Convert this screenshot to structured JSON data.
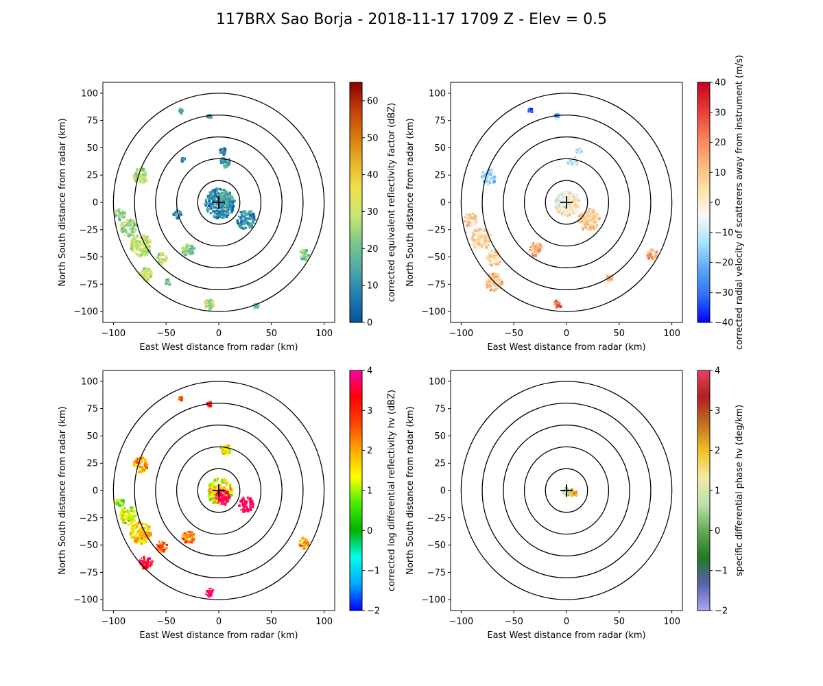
{
  "figure_title": "117BRX Sao Borja - 2018-11-17 1709 Z -  Elev = 0.5",
  "chart_data": [
    {
      "type": "heatmap",
      "panel": "reflectivity",
      "xlabel": "East West distance from radar (km)",
      "ylabel": "North South distance from radar (km)",
      "xlim": [
        -110,
        110
      ],
      "ylim": [
        -110,
        110
      ],
      "x_ticks": [
        -100,
        -50,
        0,
        50,
        100
      ],
      "y_ticks": [
        -100,
        -75,
        -50,
        -25,
        0,
        25,
        50,
        75,
        100
      ],
      "range_rings_km": [
        20,
        40,
        60,
        80,
        100
      ],
      "colorbar": {
        "label": "corrected equivalent reflectivity factor (dBZ)",
        "min": 0,
        "max": 65,
        "ticks": [
          0,
          10,
          20,
          30,
          40,
          50,
          60
        ],
        "colors": [
          "#08519c",
          "#1f7fb4",
          "#4fa8a8",
          "#7ac98a",
          "#c6e870",
          "#f2e050",
          "#e8b428",
          "#d8780e",
          "#c43c06",
          "#8b0000"
        ]
      },
      "echoes": [
        {
          "x": 0,
          "y": 0,
          "r": 14,
          "value": 8
        },
        {
          "x": 5,
          "y": 3,
          "r": 8,
          "value": 14
        },
        {
          "x": 25,
          "y": -15,
          "r": 9,
          "value": 10
        },
        {
          "x": 5,
          "y": 38,
          "r": 5,
          "value": 12
        },
        {
          "x": 3,
          "y": 48,
          "r": 3,
          "value": 10
        },
        {
          "x": -75,
          "y": 25,
          "r": 7,
          "value": 28
        },
        {
          "x": -95,
          "y": -10,
          "r": 5,
          "value": 22
        },
        {
          "x": -87,
          "y": -22,
          "r": 8,
          "value": 24
        },
        {
          "x": -75,
          "y": -38,
          "r": 10,
          "value": 30
        },
        {
          "x": -55,
          "y": -50,
          "r": 5,
          "value": 28
        },
        {
          "x": -70,
          "y": -65,
          "r": 6,
          "value": 30
        },
        {
          "x": -50,
          "y": -72,
          "r": 3,
          "value": 20
        },
        {
          "x": -30,
          "y": -42,
          "r": 6,
          "value": 22
        },
        {
          "x": -10,
          "y": -92,
          "r": 5,
          "value": 26
        },
        {
          "x": 35,
          "y": -95,
          "r": 3,
          "value": 18
        },
        {
          "x": 80,
          "y": -47,
          "r": 5,
          "value": 22
        },
        {
          "x": -40,
          "y": -10,
          "r": 4,
          "value": 10
        },
        {
          "x": -35,
          "y": 40,
          "r": 2,
          "value": 12
        },
        {
          "x": -10,
          "y": 80,
          "r": 2,
          "value": 14
        },
        {
          "x": -37,
          "y": 85,
          "r": 2,
          "value": 16
        }
      ]
    },
    {
      "type": "heatmap",
      "panel": "velocity",
      "xlabel": "East West distance from radar (km)",
      "ylabel": "North South distance from radar (km)",
      "xlim": [
        -110,
        110
      ],
      "ylim": [
        -110,
        110
      ],
      "x_ticks": [
        -100,
        -50,
        0,
        50,
        100
      ],
      "y_ticks": [
        -100,
        -75,
        -50,
        -25,
        0,
        25,
        50,
        75,
        100
      ],
      "range_rings_km": [
        20,
        40,
        60,
        80,
        100
      ],
      "colorbar": {
        "label": "corrected radial velocity of scatterers away from instrument (m/s)",
        "min": -40,
        "max": 40,
        "ticks": [
          -40,
          -30,
          -20,
          -10,
          0,
          10,
          20,
          30,
          40
        ],
        "colors": [
          "#0000ff",
          "#2f6ff2",
          "#5aa7f5",
          "#a8e4fa",
          "#f8f8f4",
          "#fde2a8",
          "#fbb478",
          "#f47c58",
          "#e33a34",
          "#c8001e"
        ]
      },
      "echoes": [
        {
          "x": 0,
          "y": 0,
          "r": 12,
          "value": 3
        },
        {
          "x": -5,
          "y": 2,
          "r": 6,
          "value": -6
        },
        {
          "x": 20,
          "y": -15,
          "r": 10,
          "value": 9
        },
        {
          "x": 5,
          "y": 38,
          "r": 5,
          "value": -11
        },
        {
          "x": 10,
          "y": 48,
          "r": 3,
          "value": -12
        },
        {
          "x": -75,
          "y": 25,
          "r": 7,
          "value": -14
        },
        {
          "x": -92,
          "y": -15,
          "r": 6,
          "value": 8
        },
        {
          "x": -82,
          "y": -32,
          "r": 10,
          "value": 6
        },
        {
          "x": -70,
          "y": -50,
          "r": 7,
          "value": 7
        },
        {
          "x": -70,
          "y": -72,
          "r": 8,
          "value": 11
        },
        {
          "x": -30,
          "y": -42,
          "r": 6,
          "value": 14
        },
        {
          "x": -10,
          "y": -92,
          "r": 4,
          "value": 24
        },
        {
          "x": 80,
          "y": -47,
          "r": 5,
          "value": 17
        },
        {
          "x": 40,
          "y": -68,
          "r": 3,
          "value": 12
        },
        {
          "x": -35,
          "y": 85,
          "r": 2,
          "value": -30
        },
        {
          "x": -10,
          "y": 80,
          "r": 2,
          "value": -22
        }
      ]
    },
    {
      "type": "heatmap",
      "panel": "zdr",
      "xlabel": "East West distance from radar (km)",
      "ylabel": "North South distance from radar (km)",
      "xlim": [
        -110,
        110
      ],
      "ylim": [
        -110,
        110
      ],
      "x_ticks": [
        -100,
        -50,
        0,
        50,
        100
      ],
      "y_ticks": [
        -100,
        -75,
        -50,
        -25,
        0,
        25,
        50,
        75,
        100
      ],
      "range_rings_km": [
        20,
        40,
        60,
        80,
        100
      ],
      "colorbar": {
        "label": "corrected log differential reflectivity hv (dBZ)",
        "min": -2,
        "max": 4,
        "ticks": [
          -2,
          -1,
          0,
          1,
          2,
          3,
          4
        ],
        "colors": [
          "#0000ff",
          "#00aaff",
          "#00ffee",
          "#00b200",
          "#44ee00",
          "#ffff00",
          "#ffaa00",
          "#ff4400",
          "#ff0000",
          "#ff00aa"
        ]
      },
      "echoes": [
        {
          "x": 0,
          "y": 0,
          "r": 12,
          "value": 1.5
        },
        {
          "x": 3,
          "y": -5,
          "r": 7,
          "value": 3.8
        },
        {
          "x": 25,
          "y": -12,
          "r": 7,
          "value": 3.6
        },
        {
          "x": 5,
          "y": 38,
          "r": 5,
          "value": 1.4
        },
        {
          "x": -75,
          "y": 25,
          "r": 7,
          "value": 2.0
        },
        {
          "x": -95,
          "y": -10,
          "r": 4,
          "value": 1.0
        },
        {
          "x": -87,
          "y": -22,
          "r": 8,
          "value": 1.2
        },
        {
          "x": -75,
          "y": -38,
          "r": 10,
          "value": 1.8
        },
        {
          "x": -55,
          "y": -50,
          "r": 5,
          "value": 2.6
        },
        {
          "x": -70,
          "y": -65,
          "r": 6,
          "value": 3.4
        },
        {
          "x": -30,
          "y": -42,
          "r": 6,
          "value": 2.4
        },
        {
          "x": -10,
          "y": -92,
          "r": 4,
          "value": 3.9
        },
        {
          "x": 80,
          "y": -47,
          "r": 5,
          "value": 2.2
        },
        {
          "x": -10,
          "y": 80,
          "r": 2,
          "value": 3.0
        },
        {
          "x": -37,
          "y": 85,
          "r": 2,
          "value": 2.5
        }
      ]
    },
    {
      "type": "heatmap",
      "panel": "kdp",
      "xlabel": "East West distance from radar (km)",
      "ylabel": "North South distance from radar (km)",
      "xlim": [
        -110,
        110
      ],
      "ylim": [
        -110,
        110
      ],
      "x_ticks": [
        -100,
        -50,
        0,
        50,
        100
      ],
      "y_ticks": [
        -100,
        -75,
        -50,
        -25,
        0,
        25,
        50,
        75,
        100
      ],
      "range_rings_km": [
        20,
        40,
        60,
        80,
        100
      ],
      "colorbar": {
        "label": "specific differential phase hv (deg/km)",
        "min": -2,
        "max": 4,
        "ticks": [
          -2,
          -1,
          0,
          1,
          2,
          3,
          4
        ],
        "colors": [
          "#a8a8f0",
          "#5860b0",
          "#227a22",
          "#66aa55",
          "#bfe0b0",
          "#f2eaa8",
          "#f0c020",
          "#c07020",
          "#b02020",
          "#e84060"
        ]
      },
      "echoes": [
        {
          "x": 0,
          "y": 0,
          "r": 4,
          "value": 0.2
        },
        {
          "x": 4,
          "y": -1,
          "r": 3,
          "value": 2.0
        },
        {
          "x": 8,
          "y": -2,
          "r": 2,
          "value": 2.4
        }
      ]
    }
  ]
}
